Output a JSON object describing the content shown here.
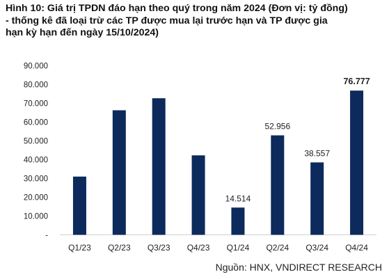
{
  "title_lines": [
    "Hình 10: Giá trị TPDN đáo hạn theo quý trong năm 2024 (Đơn vị: tỷ đồng)",
    "- thống kê đã loại trừ các TP được mua lại trước hạn và TP được gia",
    "hạn kỳ hạn đến ngày 15/10/2024)"
  ],
  "source": "Nguồn: HNX, VNDIRECT RESEARCH",
  "chart_data": {
    "type": "bar",
    "categories": [
      "Q1/23",
      "Q2/23",
      "Q3/23",
      "Q4/23",
      "Q1/24",
      "Q2/24",
      "Q3/24",
      "Q4/24"
    ],
    "values": [
      31000,
      66300,
      72700,
      42300,
      14514,
      52956,
      38557,
      76777
    ],
    "data_labels": [
      "",
      "",
      "",
      "",
      "14.514",
      "52.956",
      "38.557",
      "76.777"
    ],
    "bold_labels": [
      "76.777"
    ],
    "ylim": [
      0,
      90000
    ],
    "yticks": [
      {
        "value": 0,
        "label": "-"
      },
      {
        "value": 10000,
        "label": "10.000"
      },
      {
        "value": 20000,
        "label": "20.000"
      },
      {
        "value": 30000,
        "label": "30.000"
      },
      {
        "value": 40000,
        "label": "40.000"
      },
      {
        "value": 50000,
        "label": "50.000"
      },
      {
        "value": 60000,
        "label": "60.000"
      },
      {
        "value": 70000,
        "label": "70.000"
      },
      {
        "value": 80000,
        "label": "80.000"
      },
      {
        "value": 90000,
        "label": "90.000"
      }
    ],
    "xlabel": "",
    "ylabel": "",
    "grid": false,
    "bar_color": "#0d2a5c"
  }
}
